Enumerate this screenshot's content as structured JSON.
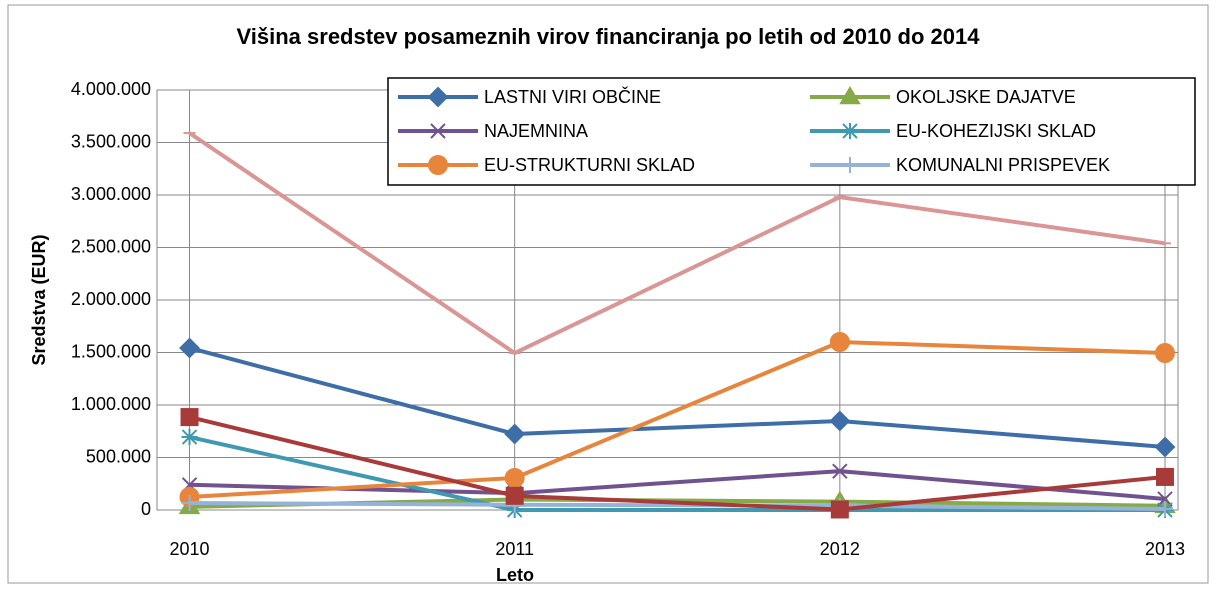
{
  "chart_data": {
    "type": "line",
    "title": "Višina sredstev posameznih virov financiranja po letih od 2010 do 2014",
    "x_label": "Leto",
    "y_label": "Sredstva (EUR)",
    "x": [
      2010,
      2011,
      2012,
      2013
    ],
    "xlim": [
      2009.9,
      2013.04
    ],
    "xticks": [
      2010,
      2011,
      2012,
      2013
    ],
    "ylim": [
      0,
      4000000
    ],
    "yticks": [
      0,
      {
        "value": 500000,
        "label": "500.000"
      },
      {
        "value": 1000000,
        "label": "1.000.000"
      },
      {
        "value": 1500000,
        "label": "1.500.000"
      },
      {
        "value": 2000000,
        "label": "2.000.000"
      },
      {
        "value": 2500000,
        "label": "2.500.000"
      },
      {
        "value": 3000000,
        "label": "3.000.000"
      },
      {
        "value": 3500000,
        "label": "3.500.000"
      },
      {
        "value": 4000000,
        "label": "4.000.000"
      }
    ],
    "grid": true,
    "series": [
      {
        "name": "LASTNI VIRI OBČINE",
        "color": "#3e6ea8",
        "marker": "diamond",
        "values": [
          1543000,
          724000,
          848000,
          600000
        ]
      },
      {
        "name": "OKOLJSKE DAJATVE",
        "color": "#86aa48",
        "marker": "triangle",
        "values": [
          30000,
          100000,
          80000,
          40000
        ]
      },
      {
        "name": "NAJEMNINA",
        "color": "#71528f",
        "marker": "x",
        "values": [
          240000,
          160000,
          370000,
          105000
        ]
      },
      {
        "name": "EU-KOHEZIJSKI SKLAD",
        "color": "#3f99b1",
        "marker": "star",
        "values": [
          695000,
          0,
          0,
          0
        ]
      },
      {
        "name": "EU-STRUKTURNI SKLAD",
        "color": "#e8853d",
        "marker": "circle",
        "values": [
          124000,
          305000,
          1600000,
          1495000
        ]
      },
      {
        "name": "KOMUNALNI PRISPEVEK",
        "color": "#95b3d7",
        "marker": "plus",
        "values": [
          67000,
          50000,
          40000,
          10000
        ]
      },
      {
        "color": "#a83a3a",
        "marker": "square",
        "values": [
          885000,
          135000,
          5000,
          315000
        ]
      },
      {
        "color": "#d99694",
        "marker": "dash",
        "values": [
          3590000,
          1495000,
          2980000,
          2540000
        ]
      }
    ]
  }
}
